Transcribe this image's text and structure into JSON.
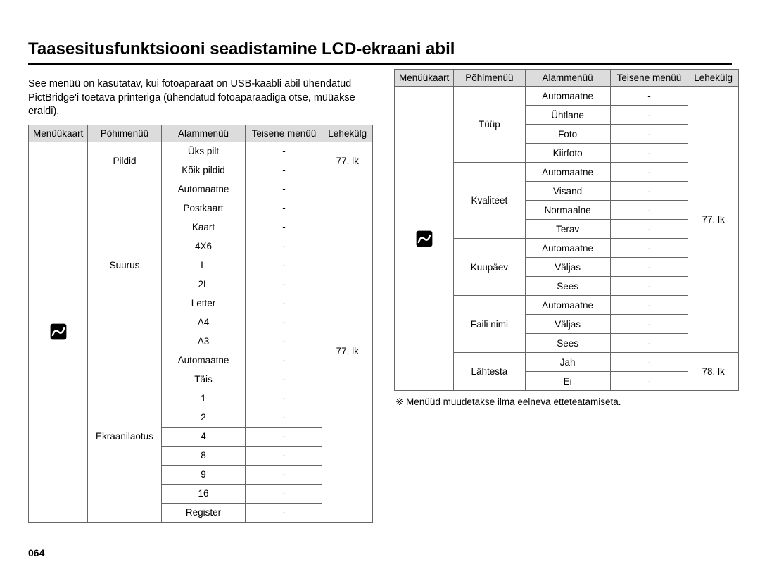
{
  "title": "Taasesitusfunktsiooni seadistamine LCD-ekraani abil",
  "intro": "See menüü on kasutatav, kui fotoaparaat on USB-kaabli abil ühendatud PictBridge'i toetava printeriga (ühendatud fotoaparaadiga otse, müüakse eraldi).",
  "headers": {
    "menu": "Menüükaart",
    "main": "Põhimenüü",
    "sub": "Alammenüü",
    "sec": "Teisene menüü",
    "page": "Lehekülg"
  },
  "dash": "-",
  "left": {
    "page1": "77. lk",
    "page2": "77. lk",
    "groups": [
      {
        "main": "Pildid",
        "subs": [
          "Üks pilt",
          "Kõik pildid"
        ]
      },
      {
        "main": "Suurus",
        "subs": [
          "Automaatne",
          "Postkaart",
          "Kaart",
          "4X6",
          "L",
          "2L",
          "Letter",
          "A4",
          "A3"
        ]
      },
      {
        "main": "Ekraanilaotus",
        "subs": [
          "Automaatne",
          "Täis",
          "1",
          "2",
          "4",
          "8",
          "9",
          "16",
          "Register"
        ]
      }
    ]
  },
  "right": {
    "page1": "77. lk",
    "page2": "78. lk",
    "groups": [
      {
        "main": "Tüüp",
        "subs": [
          "Automaatne",
          "Ühtlane",
          "Foto",
          "Kiirfoto"
        ]
      },
      {
        "main": "Kvaliteet",
        "subs": [
          "Automaatne",
          "Visand",
          "Normaalne",
          "Terav"
        ]
      },
      {
        "main": "Kuupäev",
        "subs": [
          "Automaatne",
          "Väljas",
          "Sees"
        ]
      },
      {
        "main": "Faili nimi",
        "subs": [
          "Automaatne",
          "Väljas",
          "Sees"
        ]
      },
      {
        "main": "Lähtesta",
        "subs": [
          "Jah",
          "Ei"
        ]
      }
    ]
  },
  "footnote": "※ Menüüd muudetakse ilma eelneva etteteatamiseta.",
  "pagenum": "064"
}
